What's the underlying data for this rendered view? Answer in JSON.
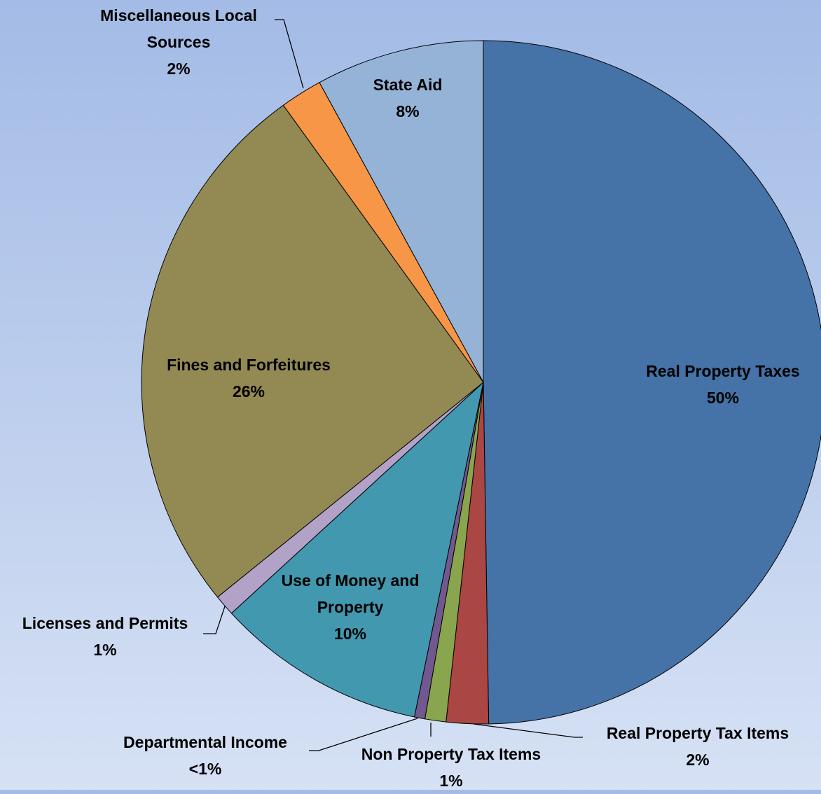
{
  "chart_data": {
    "type": "pie",
    "categories": [
      "Real Property Taxes",
      "Real Property Tax Items",
      "Non Property Tax Items",
      "Departmental Income",
      "Use of Money and Property",
      "Licenses and Permits",
      "Fines and Forfeitures",
      "Miscellaneous Local Sources",
      "State Aid"
    ],
    "values": [
      50,
      2,
      1,
      0.5,
      10,
      1,
      26,
      2,
      8
    ],
    "value_labels": [
      "50%",
      "2%",
      "1%",
      "<1%",
      "10%",
      "1%",
      "26%",
      "2%",
      "8%"
    ],
    "colors": [
      "#4572a7",
      "#aa4643",
      "#89a54e",
      "#71588f",
      "#4198af",
      "#b3a2c7",
      "#938953",
      "#f79646",
      "#95b3d7"
    ]
  }
}
